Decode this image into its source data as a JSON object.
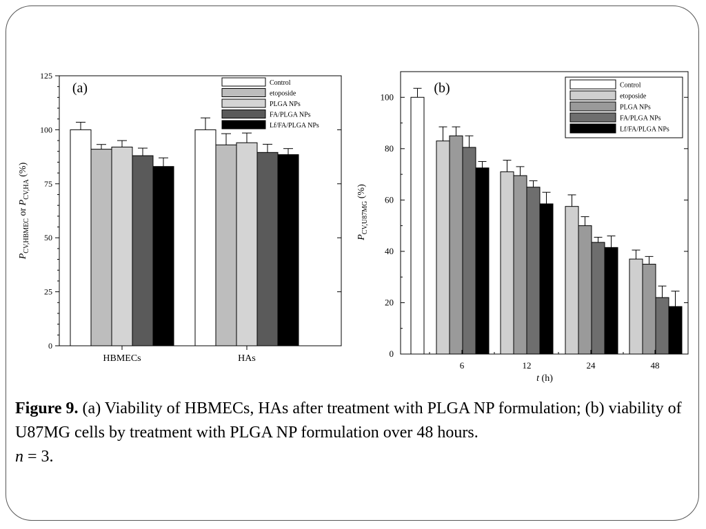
{
  "caption": {
    "label": "Figure 9.",
    "text": " (a) Viability of HBMECs, HAs after treatment with PLGA NP formulation; (b) viability of U87MG cells by treatment with PLGA NP formulation over 48 hours.",
    "n_symbol": "n",
    "n_text": " = 3."
  },
  "chart_data": [
    {
      "type": "bar",
      "panel_label": "(a)",
      "categories": [
        "HBMECs",
        "HAs"
      ],
      "ylabel": {
        "symbol": "P",
        "sub1": "CV,HBMEC",
        "mid": " or ",
        "sub2": "CV,HA",
        "unit": " (%)"
      },
      "ylim": [
        0,
        125
      ],
      "yticks": [
        0,
        25,
        50,
        75,
        100,
        125
      ],
      "legend_position": "top-right",
      "series": [
        {
          "name": "Control",
          "color": "#ffffff",
          "values": [
            100,
            100
          ],
          "errors": [
            3.5,
            5.5
          ]
        },
        {
          "name": "etoposide",
          "color": "#bdbdbd",
          "values": [
            91,
            93
          ],
          "errors": [
            2.2,
            5.2
          ]
        },
        {
          "name": "PLGA NPs",
          "color": "#d4d4d4",
          "values": [
            92,
            94
          ],
          "errors": [
            3,
            4.5
          ]
        },
        {
          "name": "FA/PLGA NPs",
          "color": "#5a5a5a",
          "values": [
            88,
            89.5
          ],
          "errors": [
            3.5,
            3.8
          ]
        },
        {
          "name": "Lf/FA/PLGA NPs",
          "color": "#000000",
          "values": [
            83,
            88.5
          ],
          "errors": [
            4,
            2.8
          ]
        }
      ]
    },
    {
      "type": "bar",
      "panel_label": "(b)",
      "categories": [
        "6",
        "12",
        "24",
        "48"
      ],
      "xlabel": {
        "symbol": "t",
        "unit": " (h)"
      },
      "ylabel": {
        "symbol": "P",
        "sub": "CV,U87MG",
        "unit": " (%)"
      },
      "ylim": [
        0,
        110
      ],
      "yticks": [
        0,
        20,
        40,
        60,
        80,
        100
      ],
      "legend_position": "top-right",
      "control": {
        "name": "Control",
        "value": 100,
        "error": 3.5
      },
      "series": [
        {
          "name": "Control",
          "color": "#ffffff",
          "values": [
            null,
            null,
            null,
            null
          ],
          "errors": [
            null,
            null,
            null,
            null
          ]
        },
        {
          "name": "etoposide",
          "color": "#cfcfcf",
          "values": [
            83,
            71,
            57.5,
            37
          ],
          "errors": [
            5.5,
            4.5,
            4.5,
            3.5
          ]
        },
        {
          "name": "PLGA NPs",
          "color": "#9a9a9a",
          "values": [
            85,
            69.5,
            50,
            35
          ],
          "errors": [
            3.5,
            3.5,
            3.5,
            3
          ]
        },
        {
          "name": "FA/PLGA NPs",
          "color": "#6e6e6e",
          "values": [
            80.5,
            65,
            43.5,
            22
          ],
          "errors": [
            4.5,
            2.5,
            2,
            4.5
          ]
        },
        {
          "name": "Lf/FA/PLGA NPs",
          "color": "#000000",
          "values": [
            72.5,
            58.5,
            41.5,
            18.5
          ],
          "errors": [
            2.5,
            4.5,
            4.5,
            6
          ]
        }
      ]
    }
  ]
}
